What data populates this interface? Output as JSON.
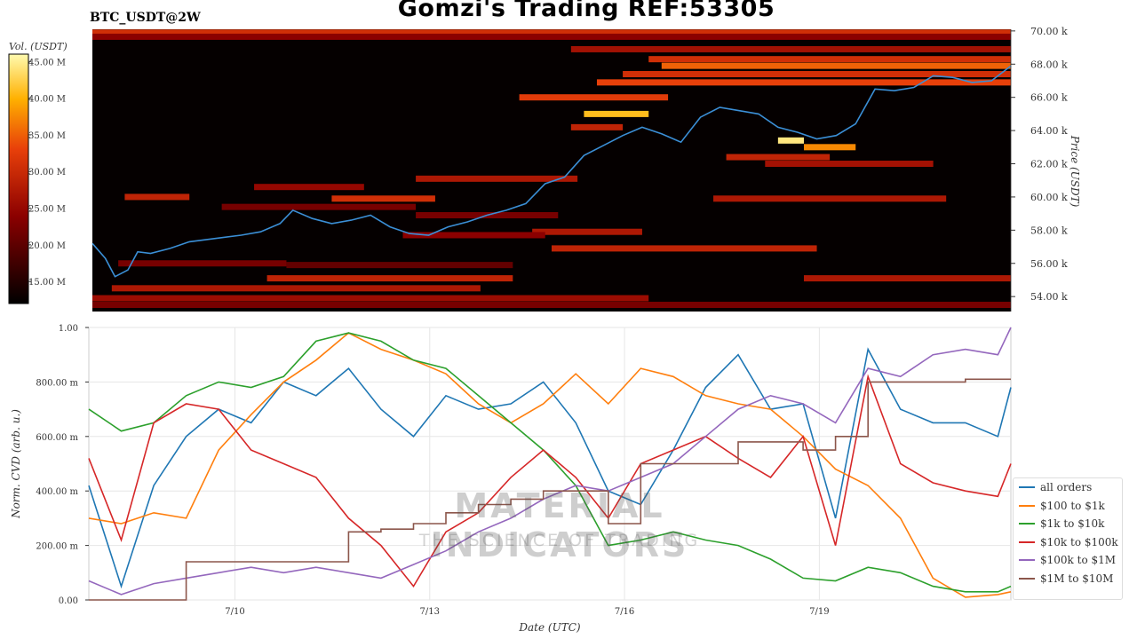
{
  "header": {
    "title": "Gomzi's Trading REF:53305",
    "symbol": "BTC_USDT@2W"
  },
  "watermark": {
    "brand": "MATERIAL INDICATORS",
    "tagline": "THE SCIENCE OF TRADING"
  },
  "colors": {
    "all_orders": "#1f77b4",
    "usd_100_1k": "#ff7f0e",
    "usd_1k_10k": "#2ca02c",
    "usd_10k_100k": "#d62728",
    "usd_100k_1m": "#9467bd",
    "usd_1m_10m": "#8c564b"
  },
  "chart_data": [
    {
      "type": "heatmap",
      "title": "Gomzi's Trading REF:53305",
      "ylabel": "Price (USDT)",
      "colorbar_label": "Vol. (USDT)",
      "colorbar_ticks": [
        "45.00 M",
        "40.00 M",
        "35.00 M",
        "30.00 M",
        "25.00 M",
        "20.00 M",
        "15.00 M"
      ],
      "colorbar_values": [
        45,
        40,
        35,
        30,
        25,
        20,
        15
      ],
      "colorbar_range": [
        12,
        46
      ],
      "y_ticks": [
        "70.00 k",
        "68.00 k",
        "66.00 k",
        "64.00 k",
        "62.00 k",
        "60.00 k",
        "58.00 k",
        "56.00 k",
        "54.00 k"
      ],
      "y_tick_values": [
        70000,
        68000,
        66000,
        64000,
        62000,
        60000,
        58000,
        56000,
        54000
      ],
      "ylim": [
        53100,
        70100
      ],
      "xlim": [
        0,
        14.2
      ],
      "price_series": {
        "name": "price",
        "color": "#3b8fd6",
        "x": [
          0,
          0.2,
          0.35,
          0.55,
          0.7,
          0.9,
          1.2,
          1.5,
          1.9,
          2.3,
          2.6,
          2.9,
          3.1,
          3.4,
          3.7,
          4.0,
          4.3,
          4.6,
          4.9,
          5.2,
          5.5,
          5.8,
          6.1,
          6.4,
          6.7,
          7.0,
          7.3,
          7.6,
          7.9,
          8.2,
          8.5,
          8.8,
          9.1,
          9.4,
          9.7,
          10.0,
          10.3,
          10.6,
          10.9,
          11.2,
          11.5,
          11.8,
          12.1,
          12.4,
          12.7,
          13.0,
          13.3,
          13.6,
          13.9,
          14.2
        ],
        "y": [
          57200,
          56300,
          55200,
          55600,
          56700,
          56600,
          56900,
          57300,
          57500,
          57700,
          57900,
          58400,
          59200,
          58700,
          58400,
          58600,
          58900,
          58200,
          57800,
          57700,
          58200,
          58500,
          58900,
          59200,
          59600,
          60800,
          61200,
          62500,
          63100,
          63700,
          64200,
          63800,
          63300,
          64800,
          65400,
          65200,
          65000,
          64200,
          63900,
          63500,
          63700,
          64400,
          66500,
          66400,
          66600,
          67300,
          67200,
          66900,
          67000,
          67900
        ]
      },
      "bands": [
        {
          "price": 69900,
          "start": 0.0,
          "end": 14.2,
          "intensity": 0.55
        },
        {
          "price": 69650,
          "start": 0.0,
          "end": 14.2,
          "intensity": 0.35
        },
        {
          "price": 68900,
          "start": 7.4,
          "end": 14.2,
          "intensity": 0.42
        },
        {
          "price": 68300,
          "start": 8.6,
          "end": 14.2,
          "intensity": 0.55
        },
        {
          "price": 67900,
          "start": 8.8,
          "end": 14.2,
          "intensity": 0.68
        },
        {
          "price": 67400,
          "start": 8.2,
          "end": 14.2,
          "intensity": 0.55
        },
        {
          "price": 66900,
          "start": 7.8,
          "end": 14.2,
          "intensity": 0.62
        },
        {
          "price": 66000,
          "start": 6.6,
          "end": 8.9,
          "intensity": 0.6
        },
        {
          "price": 65000,
          "start": 7.6,
          "end": 8.6,
          "intensity": 0.85
        },
        {
          "price": 64200,
          "start": 7.4,
          "end": 8.2,
          "intensity": 0.5
        },
        {
          "price": 63400,
          "start": 10.6,
          "end": 11.0,
          "intensity": 0.95
        },
        {
          "price": 63000,
          "start": 11.0,
          "end": 11.8,
          "intensity": 0.75
        },
        {
          "price": 62400,
          "start": 9.8,
          "end": 11.4,
          "intensity": 0.5
        },
        {
          "price": 62000,
          "start": 10.4,
          "end": 13.0,
          "intensity": 0.42
        },
        {
          "price": 61100,
          "start": 5.0,
          "end": 7.5,
          "intensity": 0.45
        },
        {
          "price": 60600,
          "start": 2.5,
          "end": 4.2,
          "intensity": 0.38
        },
        {
          "price": 60000,
          "start": 0.5,
          "end": 1.5,
          "intensity": 0.5
        },
        {
          "price": 59900,
          "start": 3.7,
          "end": 5.3,
          "intensity": 0.55
        },
        {
          "price": 59900,
          "start": 9.6,
          "end": 13.2,
          "intensity": 0.45
        },
        {
          "price": 59400,
          "start": 2.0,
          "end": 5.0,
          "intensity": 0.3
        },
        {
          "price": 58900,
          "start": 5.0,
          "end": 7.2,
          "intensity": 0.3
        },
        {
          "price": 57900,
          "start": 6.8,
          "end": 8.5,
          "intensity": 0.45
        },
        {
          "price": 57700,
          "start": 4.8,
          "end": 7.0,
          "intensity": 0.35
        },
        {
          "price": 56900,
          "start": 7.1,
          "end": 11.2,
          "intensity": 0.5
        },
        {
          "price": 56000,
          "start": 0.4,
          "end": 3.0,
          "intensity": 0.3
        },
        {
          "price": 55900,
          "start": 3.0,
          "end": 6.5,
          "intensity": 0.25
        },
        {
          "price": 55100,
          "start": 2.7,
          "end": 6.5,
          "intensity": 0.5
        },
        {
          "price": 55100,
          "start": 11.0,
          "end": 14.2,
          "intensity": 0.45
        },
        {
          "price": 54500,
          "start": 0.3,
          "end": 6.0,
          "intensity": 0.45
        },
        {
          "price": 53900,
          "start": 0.0,
          "end": 8.6,
          "intensity": 0.4
        },
        {
          "price": 53500,
          "start": 0.0,
          "end": 14.2,
          "intensity": 0.3
        }
      ]
    },
    {
      "type": "line",
      "xlabel": "Date (UTC)",
      "ylabel": "Norm. CVD (arb. u.)",
      "x_ticks": [
        "7/10",
        "7/13",
        "7/16",
        "7/19"
      ],
      "x_tick_values": [
        2.25,
        5.25,
        8.25,
        11.25
      ],
      "y_ticks": [
        "1.00",
        "800.00 m",
        "600.00 m",
        "400.00 m",
        "200.00 m",
        "0.00"
      ],
      "y_tick_values": [
        1.0,
        0.8,
        0.6,
        0.4,
        0.2,
        0.0
      ],
      "xlim": [
        0,
        14.2
      ],
      "ylim": [
        0,
        1
      ],
      "grid": true,
      "legend_position": "lower-right",
      "x": [
        0,
        0.5,
        1,
        1.5,
        2,
        2.5,
        3,
        3.5,
        4,
        4.5,
        5,
        5.5,
        6,
        6.5,
        7,
        7.5,
        8,
        8.5,
        9,
        9.5,
        10,
        10.5,
        11,
        11.5,
        12,
        12.5,
        13,
        13.5,
        14,
        14.2
      ],
      "series": [
        {
          "name": "all orders",
          "values": [
            0.42,
            0.05,
            0.42,
            0.6,
            0.7,
            0.65,
            0.8,
            0.75,
            0.85,
            0.7,
            0.6,
            0.75,
            0.7,
            0.72,
            0.8,
            0.65,
            0.4,
            0.35,
            0.55,
            0.78,
            0.9,
            0.7,
            0.72,
            0.3,
            0.92,
            0.7,
            0.65,
            0.65,
            0.6,
            0.78
          ]
        },
        {
          "name": "$100 to $1k",
          "values": [
            0.3,
            0.28,
            0.32,
            0.3,
            0.55,
            0.68,
            0.8,
            0.88,
            0.98,
            0.92,
            0.88,
            0.83,
            0.72,
            0.65,
            0.72,
            0.83,
            0.72,
            0.85,
            0.82,
            0.75,
            0.72,
            0.7,
            0.6,
            0.48,
            0.42,
            0.3,
            0.08,
            0.01,
            0.02,
            0.03
          ]
        },
        {
          "name": "$1k to $10k",
          "values": [
            0.7,
            0.62,
            0.65,
            0.75,
            0.8,
            0.78,
            0.82,
            0.95,
            0.98,
            0.95,
            0.88,
            0.85,
            0.75,
            0.65,
            0.55,
            0.42,
            0.2,
            0.22,
            0.25,
            0.22,
            0.2,
            0.15,
            0.08,
            0.07,
            0.12,
            0.1,
            0.05,
            0.03,
            0.03,
            0.05
          ]
        },
        {
          "name": "$10k to $100k",
          "values": [
            0.52,
            0.22,
            0.65,
            0.72,
            0.7,
            0.55,
            0.5,
            0.45,
            0.3,
            0.2,
            0.05,
            0.25,
            0.32,
            0.45,
            0.55,
            0.45,
            0.3,
            0.5,
            0.55,
            0.6,
            0.52,
            0.45,
            0.6,
            0.2,
            0.82,
            0.5,
            0.43,
            0.4,
            0.38,
            0.5
          ]
        },
        {
          "name": "$100k to $1M",
          "values": [
            0.07,
            0.02,
            0.06,
            0.08,
            0.1,
            0.12,
            0.1,
            0.12,
            0.1,
            0.08,
            0.13,
            0.18,
            0.25,
            0.3,
            0.37,
            0.42,
            0.4,
            0.45,
            0.5,
            0.6,
            0.7,
            0.75,
            0.72,
            0.65,
            0.85,
            0.82,
            0.9,
            0.92,
            0.9,
            1.0
          ]
        },
        {
          "name": "$1M to $10M",
          "values": [
            0,
            0,
            0,
            0.14,
            0.14,
            0.14,
            0.14,
            0.14,
            0.25,
            0.26,
            0.28,
            0.32,
            0.35,
            0.37,
            0.4,
            0.4,
            0.28,
            0.5,
            0.5,
            0.5,
            0.58,
            0.58,
            0.55,
            0.6,
            0.8,
            0.8,
            0.8,
            0.81,
            0.81,
            0.81
          ]
        }
      ]
    }
  ]
}
